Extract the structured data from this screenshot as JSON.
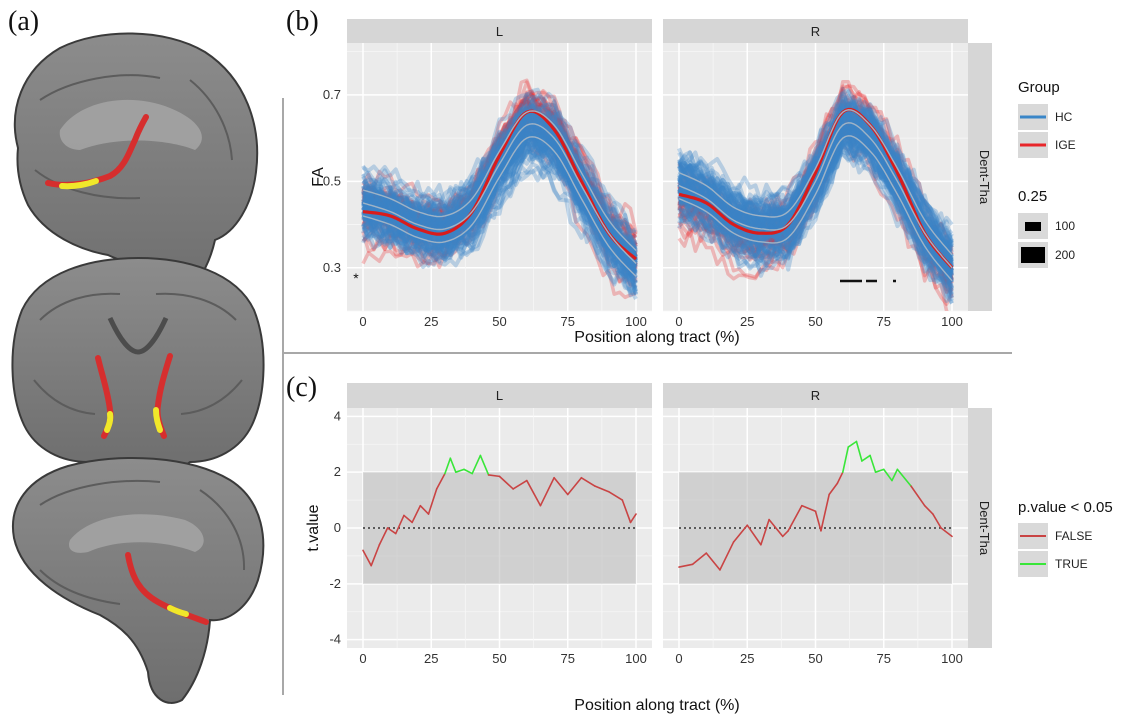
{
  "labels": {
    "a": "(a)",
    "b": "(b)",
    "c": "(c)"
  },
  "facets": {
    "left": "L",
    "right": "R",
    "row": "Dent-Tha"
  },
  "panel_b": {
    "ylabel": "FA",
    "xlabel": "Position along tract (%)",
    "yticks": [
      "0.3",
      "0.5",
      "0.7"
    ],
    "xticks": [
      "0",
      "25",
      "50",
      "75",
      "100"
    ],
    "star": "*",
    "legend_group_title": "Group",
    "legend_group": [
      {
        "label": "HC",
        "color": "#3a86c8"
      },
      {
        "label": "IGE",
        "color": "#e8262a"
      }
    ],
    "legend_size_title": "0.25",
    "legend_size": [
      "100",
      "200"
    ]
  },
  "panel_c": {
    "ylabel": "t.value",
    "xlabel": "Position along tract (%)",
    "yticks": [
      "-4",
      "-2",
      "0",
      "2",
      "4"
    ],
    "xticks": [
      "0",
      "25",
      "50",
      "75",
      "100"
    ],
    "legend_title": "p.value < 0.05",
    "legend": [
      {
        "label": "FALSE",
        "color": "#c94444"
      },
      {
        "label": "TRUE",
        "color": "#39e639"
      }
    ]
  },
  "chart_data": [
    {
      "type": "line",
      "panel": "b",
      "facets": [
        "L",
        "R"
      ],
      "ylabel": "FA",
      "xlabel": "Position along tract (%)",
      "xlim": [
        0,
        100
      ],
      "ylim": [
        0.2,
        0.82
      ],
      "series": [
        {
          "name": "IGE",
          "facet": "L",
          "x": [
            0,
            10,
            20,
            30,
            40,
            50,
            60,
            70,
            80,
            90,
            100
          ],
          "values": [
            0.43,
            0.42,
            0.39,
            0.38,
            0.43,
            0.56,
            0.66,
            0.62,
            0.5,
            0.38,
            0.32
          ]
        },
        {
          "name": "HC",
          "facet": "L",
          "x": [
            0,
            10,
            20,
            30,
            40,
            50,
            60,
            70,
            80,
            90,
            100
          ],
          "values": [
            0.45,
            0.43,
            0.4,
            0.39,
            0.43,
            0.54,
            0.63,
            0.6,
            0.49,
            0.38,
            0.31
          ]
        },
        {
          "name": "IGE",
          "facet": "R",
          "x": [
            0,
            10,
            20,
            30,
            40,
            50,
            60,
            70,
            80,
            90,
            100
          ],
          "values": [
            0.47,
            0.45,
            0.4,
            0.38,
            0.4,
            0.52,
            0.66,
            0.63,
            0.52,
            0.38,
            0.3
          ]
        },
        {
          "name": "HC",
          "facet": "R",
          "x": [
            0,
            10,
            20,
            30,
            40,
            50,
            60,
            70,
            80,
            90,
            100
          ],
          "values": [
            0.49,
            0.46,
            0.41,
            0.39,
            0.4,
            0.5,
            0.63,
            0.6,
            0.5,
            0.38,
            0.3
          ]
        }
      ]
    },
    {
      "type": "line",
      "panel": "c",
      "facets": [
        "L",
        "R"
      ],
      "ylabel": "t.value",
      "xlabel": "Position along tract (%)",
      "xlim": [
        0,
        100
      ],
      "ylim": [
        -4.3,
        4.3
      ],
      "series": [
        {
          "name": "L",
          "facet": "L",
          "x": [
            0,
            3,
            6,
            9,
            12,
            15,
            18,
            21,
            24,
            27,
            30,
            32,
            34,
            37,
            40,
            43,
            46,
            50,
            55,
            60,
            65,
            70,
            75,
            80,
            85,
            90,
            95,
            98,
            100
          ],
          "values": [
            -0.8,
            -1.35,
            -0.6,
            0.0,
            -0.2,
            0.45,
            0.2,
            0.8,
            0.5,
            1.4,
            1.95,
            2.5,
            2.0,
            2.1,
            1.95,
            2.6,
            1.9,
            1.85,
            1.4,
            1.7,
            0.8,
            1.8,
            1.2,
            1.8,
            1.5,
            1.3,
            1.0,
            0.2,
            0.5
          ]
        },
        {
          "name": "R",
          "facet": "R",
          "x": [
            0,
            5,
            10,
            15,
            20,
            25,
            30,
            33,
            38,
            40,
            45,
            50,
            52,
            55,
            58,
            60,
            62,
            65,
            67,
            70,
            72,
            75,
            78,
            80,
            85,
            90,
            93,
            96,
            100
          ],
          "values": [
            -1.4,
            -1.3,
            -0.9,
            -1.5,
            -0.5,
            0.1,
            -0.6,
            0.3,
            -0.3,
            -0.1,
            0.8,
            0.6,
            -0.1,
            1.2,
            1.6,
            2.0,
            2.9,
            3.1,
            2.4,
            2.6,
            2.0,
            2.1,
            1.7,
            2.1,
            1.5,
            0.8,
            0.5,
            0.0,
            -0.3
          ]
        }
      ]
    }
  ]
}
